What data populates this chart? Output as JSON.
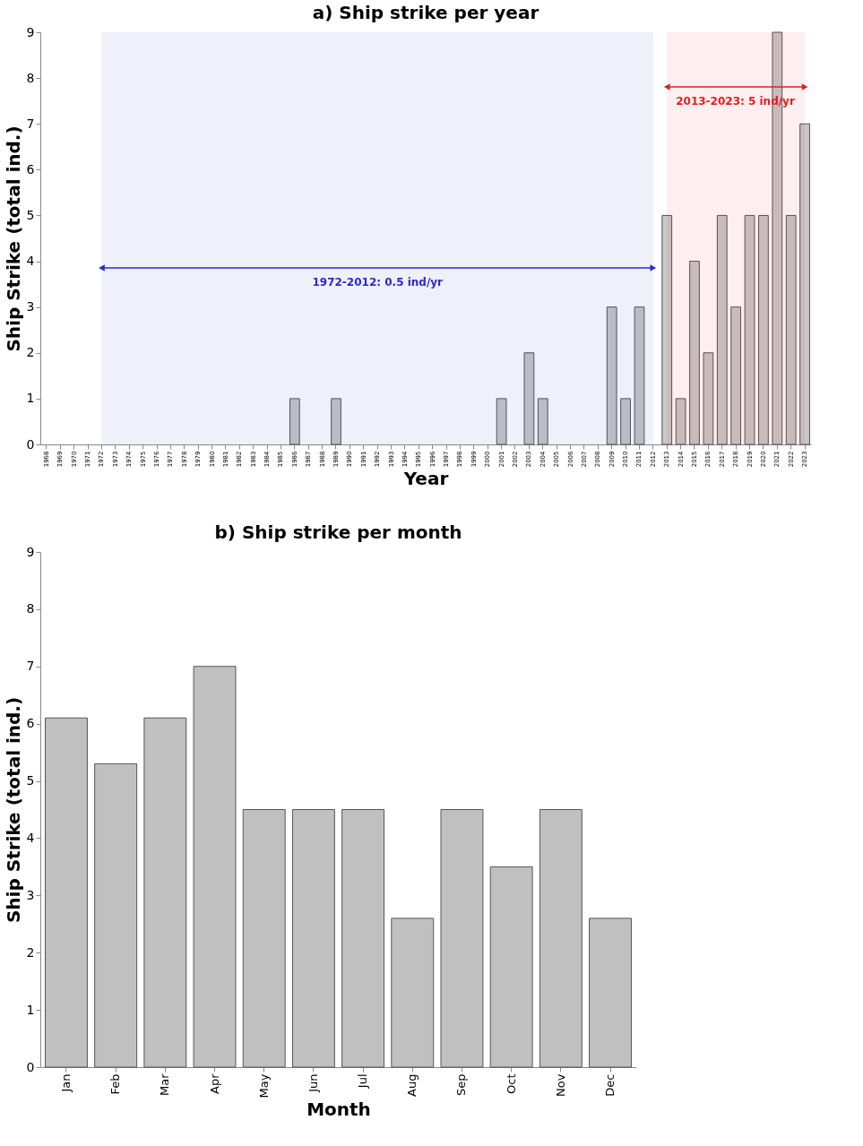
{
  "chart_data": [
    {
      "type": "bar",
      "title": "a) Ship strike per year",
      "xlabel": "Year",
      "ylabel": "Ship Strike (total ind.)",
      "categories": [
        "1968",
        "1969",
        "1970",
        "1971",
        "1972",
        "1973",
        "1974",
        "1975",
        "1976",
        "1977",
        "1978",
        "1979",
        "1980",
        "1981",
        "1982",
        "1983",
        "1984",
        "1985",
        "1986",
        "1987",
        "1988",
        "1989",
        "1990",
        "1991",
        "1992",
        "1993",
        "1994",
        "1995",
        "1996",
        "1997",
        "1998",
        "1999",
        "2000",
        "2001",
        "2002",
        "2003",
        "2004",
        "2005",
        "2006",
        "2007",
        "2008",
        "2009",
        "2010",
        "2011",
        "2012",
        "2013",
        "2014",
        "2015",
        "2016",
        "2017",
        "2018",
        "2019",
        "2020",
        "2021",
        "2022",
        "2023"
      ],
      "values": [
        0,
        0,
        0,
        0,
        0,
        0,
        0,
        0,
        0,
        0,
        0,
        0,
        0,
        0,
        0,
        0,
        0,
        0,
        1,
        0,
        0,
        1,
        0,
        0,
        0,
        0,
        0,
        0,
        0,
        0,
        0,
        0,
        0,
        1,
        0,
        2,
        1,
        0,
        0,
        0,
        0,
        3,
        1,
        3,
        0,
        5,
        1,
        4,
        2,
        5,
        3,
        5,
        5,
        9,
        5,
        7
      ],
      "color": "#c8c8c8",
      "ylim": [
        0,
        9
      ],
      "yticks": [
        0,
        1,
        2,
        3,
        4,
        5,
        6,
        7,
        8,
        9
      ],
      "grid": false,
      "bands": [
        {
          "axis": "x",
          "from": "1972",
          "to": "2012",
          "label": "1972-2012: 0.5 ind/yr",
          "color": "#2a2ac8"
        },
        {
          "axis": "x",
          "from": "2013",
          "to": "2023",
          "label": "2013-2023: 5 ind/yr",
          "color": "#e02020"
        }
      ]
    },
    {
      "type": "bar",
      "title": "b) Ship strike per month",
      "xlabel": "Month",
      "ylabel": "Ship Strike (total ind.)",
      "categories": [
        "Jan",
        "Feb",
        "Mar",
        "Apr",
        "May",
        "Jun",
        "Jul",
        "Aug",
        "Sep",
        "Oct",
        "Nov",
        "Dec"
      ],
      "values": [
        6.1,
        5.3,
        6.1,
        7.0,
        4.5,
        4.5,
        4.5,
        2.6,
        4.5,
        3.5,
        4.5,
        2.6
      ],
      "color": "#c0c0c0",
      "ylim": [
        0,
        9
      ],
      "yticks": [
        0,
        1,
        2,
        3,
        4,
        5,
        6,
        7,
        8,
        9
      ],
      "grid": false
    }
  ]
}
